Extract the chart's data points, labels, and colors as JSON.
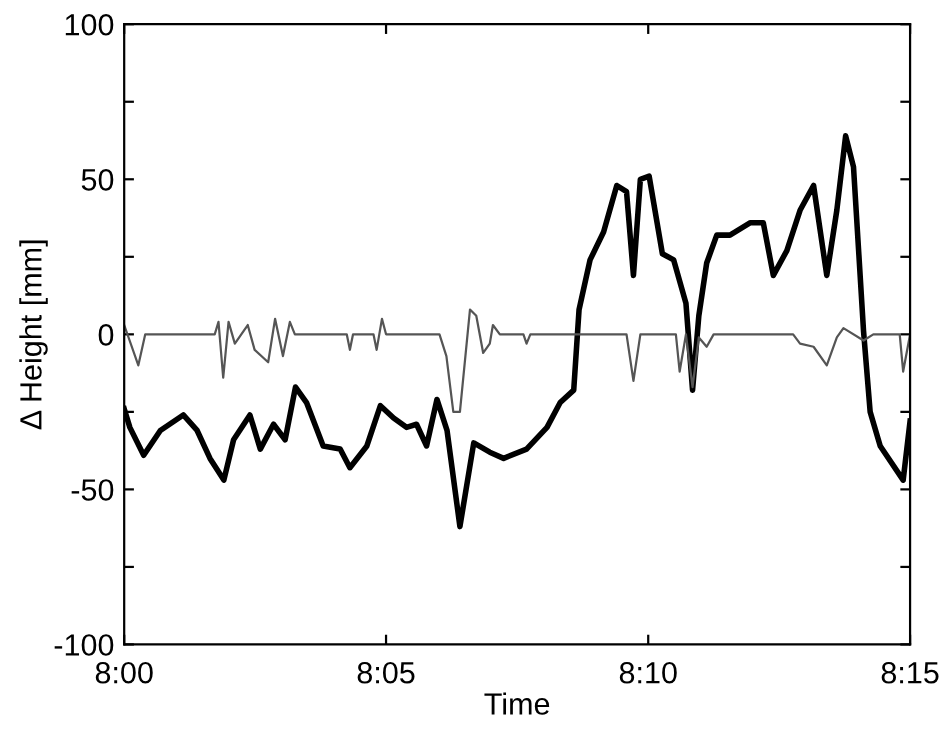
{
  "chart_data": {
    "type": "line",
    "xlabel": "Time",
    "ylabel": "Δ Height [mm]",
    "xlim": [
      8.0,
      8.25
    ],
    "xticks": [
      {
        "value": 8.0,
        "label": "8:00"
      },
      {
        "value": 8.0833,
        "label": "8:05"
      },
      {
        "value": 8.1667,
        "label": "8:10"
      },
      {
        "value": 8.25,
        "label": "8:15"
      }
    ],
    "ylim": [
      -100,
      100
    ],
    "yticks": [
      -100,
      {
        "value": -75,
        "label": null
      },
      -50,
      {
        "value": -25,
        "label": null
      },
      0,
      {
        "value": 25,
        "label": null
      },
      50,
      {
        "value": 75,
        "label": null
      },
      100
    ],
    "grid": false,
    "marker": "none",
    "line_style": "solid",
    "series": [
      {
        "color": "#000000",
        "x": [
          8.0,
          8.0018,
          8.0062,
          8.0115,
          8.0188,
          8.0232,
          8.0273,
          8.0317,
          8.0348,
          8.04,
          8.0433,
          8.0475,
          8.0512,
          8.0545,
          8.058,
          8.0633,
          8.0687,
          8.0718,
          8.0772,
          8.0815,
          8.0857,
          8.0898,
          8.093,
          8.0962,
          8.0995,
          8.1027,
          8.1068,
          8.1112,
          8.1163,
          8.1207,
          8.128,
          8.1345,
          8.1387,
          8.143,
          8.1447,
          8.1482,
          8.1525,
          8.1567,
          8.1598,
          8.162,
          8.1642,
          8.167,
          8.1712,
          8.1748,
          8.1787,
          8.1808,
          8.1828,
          8.1853,
          8.1885,
          8.1927,
          8.1992,
          8.2033,
          8.2065,
          8.2108,
          8.215,
          8.2193,
          8.2235,
          8.2267,
          8.2295,
          8.232,
          8.2352,
          8.2373,
          8.2405,
          8.2478,
          8.25
        ],
        "values": [
          -24,
          -30,
          -39,
          -31,
          -26,
          -31,
          -40,
          -47,
          -34,
          -26,
          -37,
          -29,
          -34,
          -17,
          -22,
          -36,
          -37,
          -43,
          -36,
          -23,
          -27,
          -30,
          -29,
          -36,
          -21,
          -31,
          -62,
          -35,
          -38,
          -40,
          -37,
          -30,
          -22,
          -18,
          8,
          24,
          33,
          48,
          46,
          19,
          50,
          51,
          26,
          24,
          10,
          -18,
          6,
          23,
          32,
          32,
          36,
          36,
          19,
          27,
          40,
          48,
          19,
          40,
          64,
          54,
          1,
          -25,
          -36,
          -47,
          -28
        ]
      },
      {
        "color": "#555555",
        "x": [
          8.0,
          8.0045,
          8.0067,
          8.0288,
          8.03,
          8.0315,
          8.0332,
          8.0352,
          8.0393,
          8.0415,
          8.0458,
          8.048,
          8.0505,
          8.0527,
          8.0543,
          8.0708,
          8.0718,
          8.0728,
          8.0793,
          8.0803,
          8.082,
          8.0833,
          8.1003,
          8.1025,
          8.1047,
          8.1068,
          8.11,
          8.112,
          8.1142,
          8.1163,
          8.1173,
          8.1195,
          8.127,
          8.128,
          8.1292,
          8.1598,
          8.162,
          8.1642,
          8.1755,
          8.1767,
          8.1787,
          8.1808,
          8.1828,
          8.1853,
          8.1875,
          8.2128,
          8.215,
          8.2193,
          8.2235,
          8.2267,
          8.2288,
          8.2352,
          8.2383,
          8.2467,
          8.2478,
          8.25
        ],
        "values": [
          3,
          -10,
          0,
          0,
          4,
          -14,
          4,
          -3,
          3,
          -5,
          -9,
          5,
          -7,
          4,
          0,
          0,
          -5,
          0,
          0,
          -5,
          5,
          0,
          0,
          -7,
          -25,
          -25,
          8,
          6,
          -6,
          -3,
          3,
          0,
          0,
          -3,
          0,
          0,
          -15,
          0,
          0,
          -12,
          0,
          -17,
          -1,
          -4,
          0,
          0,
          -3,
          -4,
          -10,
          -1,
          2,
          -2,
          0,
          0,
          -12,
          0
        ]
      }
    ]
  }
}
